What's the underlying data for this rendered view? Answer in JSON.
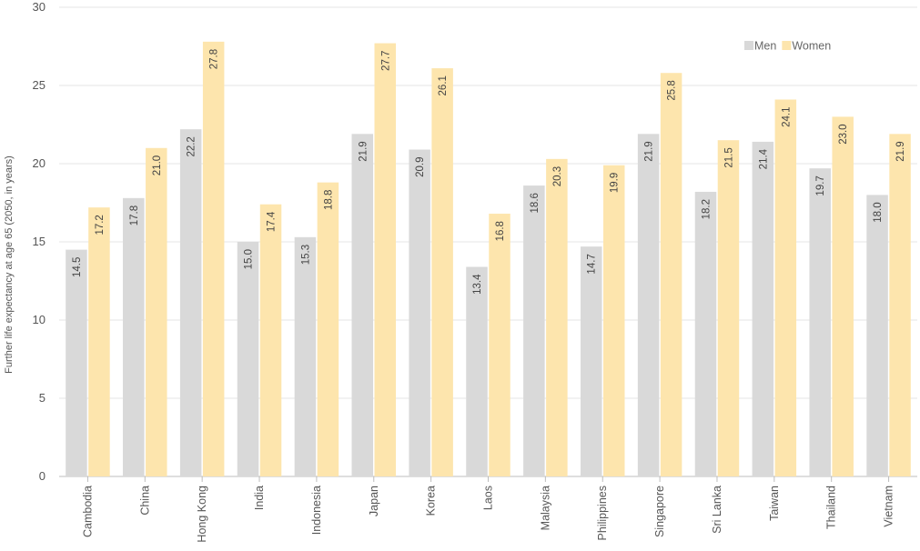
{
  "chart_data": {
    "type": "bar",
    "ylabel": "Further life expectancy at age 65 (2050, in years)",
    "ylim": [
      0,
      30
    ],
    "yticks": [
      0,
      5,
      10,
      15,
      20,
      25,
      30
    ],
    "grid": true,
    "legend_position": "top-right",
    "categories": [
      "Cambodia",
      "China",
      "Hong Kong",
      "India",
      "Indonesia",
      "Japan",
      "Korea",
      "Laos",
      "Malaysia",
      "Philippines",
      "Singapore",
      "Sri Lanka",
      "Taiwan",
      "Thailand",
      "Vietnam"
    ],
    "series": [
      {
        "name": "Men",
        "color": "#d9d9d9",
        "values": [
          14.5,
          17.8,
          22.2,
          15.0,
          15.3,
          21.9,
          20.9,
          13.4,
          18.6,
          14.7,
          21.9,
          18.2,
          21.4,
          19.7,
          18.0
        ]
      },
      {
        "name": "Women",
        "color": "#fde5ad",
        "values": [
          17.2,
          21.0,
          27.8,
          17.4,
          18.8,
          27.7,
          26.1,
          16.8,
          20.3,
          19.9,
          25.8,
          21.5,
          24.1,
          23.0,
          21.9
        ]
      }
    ]
  }
}
